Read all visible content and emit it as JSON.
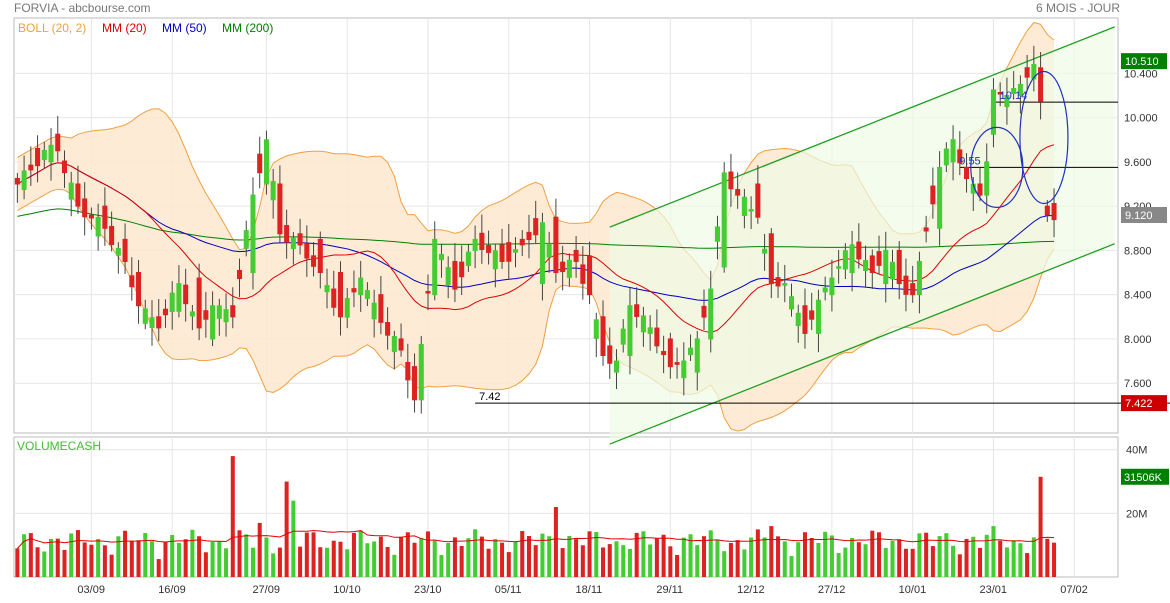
{
  "header": {
    "title": "FORVIA - abcbourse.com",
    "period": "6 MOIS - JOUR"
  },
  "legend": [
    {
      "label": "BOLL (20, 2)",
      "color": "#f0a040"
    },
    {
      "label": "MM (20)",
      "color": "#e00000"
    },
    {
      "label": "MM (50)",
      "color": "#0000c0"
    },
    {
      "label": "MM (200)",
      "color": "#008000"
    }
  ],
  "colors": {
    "up": "#44cc33",
    "down": "#dd2222",
    "boll_fill": "#fde7cf",
    "boll_line": "#f0a040",
    "channel": "#22a022",
    "channel_fill": "#eefbe6",
    "ellipse": "#2030c0",
    "last_price_bg": "#008000",
    "low_price_bg": "#cc0000",
    "vol_bg": "#008000"
  },
  "chart_data": {
    "type": "candlestick",
    "x_ticks": [
      "03/09",
      "16/09",
      "27/09",
      "10/10",
      "23/10",
      "05/11",
      "18/11",
      "29/11",
      "12/12",
      "27/12",
      "10/01",
      "23/01",
      "07/02"
    ],
    "x_tick_index": [
      11,
      23,
      37,
      49,
      61,
      73,
      85,
      97,
      109,
      121,
      133,
      145,
      157
    ],
    "y_ticks": [
      "7.600",
      "8.000",
      "8.400",
      "8.800",
      "9.200",
      "9.600",
      "10.000",
      "10.400"
    ],
    "y_tick_values": [
      7.6,
      8.0,
      8.4,
      8.8,
      9.2,
      9.6,
      10.0,
      10.4
    ],
    "ylim": [
      7.15,
      10.9
    ],
    "n_sessions": 164,
    "last_index": 154,
    "last_price_label": "10.510",
    "last_price_value": 10.51,
    "close_label": "9.120",
    "close_value": 9.12,
    "support_label": "7.42",
    "support_value": 7.42,
    "support_box_label": "7.422",
    "annotations": [
      {
        "text": "9.55",
        "value": 9.55,
        "index": 142
      },
      {
        "text": "10.14",
        "value": 10.14,
        "index": 148
      }
    ],
    "trend_channel": {
      "upper_from": {
        "index": 88,
        "value": 9.01
      },
      "upper_to": {
        "index": 163,
        "value": 10.82
      },
      "lower_from": {
        "index": 88,
        "value": 7.05
      },
      "lower_to": {
        "index": 163,
        "value": 8.86
      }
    },
    "ohlc_key_points": [
      [
        0,
        9.45,
        9.4
      ],
      [
        5,
        9.6,
        9.75
      ],
      [
        6,
        9.85,
        9.7
      ],
      [
        9,
        9.4,
        9.2
      ],
      [
        13,
        9.2,
        9.0
      ],
      [
        16,
        8.9,
        8.7
      ],
      [
        18,
        8.6,
        8.3
      ],
      [
        21,
        8.2,
        8.1
      ],
      [
        24,
        8.25,
        8.5
      ],
      [
        27,
        8.55,
        8.1
      ],
      [
        29,
        8.0,
        8.3
      ],
      [
        32,
        8.3,
        8.2
      ],
      [
        35,
        8.6,
        9.3
      ],
      [
        37,
        9.4,
        9.8
      ],
      [
        39,
        9.4,
        8.95
      ],
      [
        42,
        8.95,
        8.85
      ],
      [
        45,
        8.9,
        8.6
      ],
      [
        48,
        8.6,
        8.2
      ],
      [
        51,
        8.4,
        8.55
      ],
      [
        54,
        8.4,
        8.15
      ],
      [
        57,
        8.0,
        7.9
      ],
      [
        59,
        7.75,
        7.45
      ],
      [
        60,
        7.45,
        7.95
      ],
      [
        62,
        8.4,
        8.9
      ],
      [
        65,
        8.7,
        8.45
      ],
      [
        68,
        8.8,
        8.9
      ],
      [
        72,
        8.85,
        8.7
      ],
      [
        75,
        8.9,
        8.85
      ],
      [
        78,
        8.5,
        9.05
      ],
      [
        80,
        9.1,
        8.6
      ],
      [
        83,
        8.8,
        8.7
      ],
      [
        85,
        8.75,
        8.4
      ],
      [
        87,
        8.2,
        7.85
      ],
      [
        89,
        7.7,
        7.8
      ],
      [
        91,
        7.85,
        8.3
      ],
      [
        94,
        8.05,
        8.1
      ],
      [
        97,
        8.0,
        7.75
      ],
      [
        99,
        7.65,
        7.8
      ],
      [
        101,
        7.7,
        8.0
      ],
      [
        103,
        8.0,
        8.45
      ],
      [
        105,
        8.65,
        9.5
      ],
      [
        107,
        9.35,
        9.3
      ],
      [
        110,
        9.4,
        9.1
      ],
      [
        112,
        8.95,
        8.5
      ],
      [
        114,
        8.5,
        8.5
      ],
      [
        117,
        8.3,
        8.05
      ],
      [
        119,
        8.05,
        8.35
      ],
      [
        121,
        8.4,
        8.55
      ],
      [
        124,
        8.6,
        8.85
      ],
      [
        127,
        8.75,
        8.6
      ],
      [
        129,
        8.5,
        8.8
      ],
      [
        131,
        8.8,
        8.5
      ],
      [
        133,
        8.5,
        8.4
      ],
      [
        134,
        8.4,
        8.7
      ],
      [
        137,
        9.0,
        9.55
      ],
      [
        139,
        9.6,
        9.8
      ],
      [
        141,
        9.55,
        9.45
      ],
      [
        143,
        9.4,
        9.3
      ],
      [
        144,
        9.3,
        9.6
      ],
      [
        145,
        9.85,
        10.25
      ],
      [
        147,
        10.1,
        10.2
      ],
      [
        149,
        10.2,
        10.3
      ],
      [
        151,
        10.35,
        10.48
      ],
      [
        152,
        10.45,
        10.15
      ],
      [
        153,
        9.2,
        9.12
      ]
    ],
    "volume": {
      "label": "VOLUMECASH",
      "y_ticks": [
        "40M",
        "20M"
      ],
      "y_tick_values": [
        40,
        20
      ],
      "ylim": [
        0,
        44
      ],
      "last_label": "31506K",
      "last_value": 31.5,
      "spikes": [
        [
          32,
          38
        ],
        [
          36,
          17
        ],
        [
          40,
          30
        ],
        [
          41,
          24
        ],
        [
          80,
          22
        ],
        [
          112,
          16
        ],
        [
          145,
          16
        ],
        [
          152,
          31.5
        ]
      ]
    }
  }
}
